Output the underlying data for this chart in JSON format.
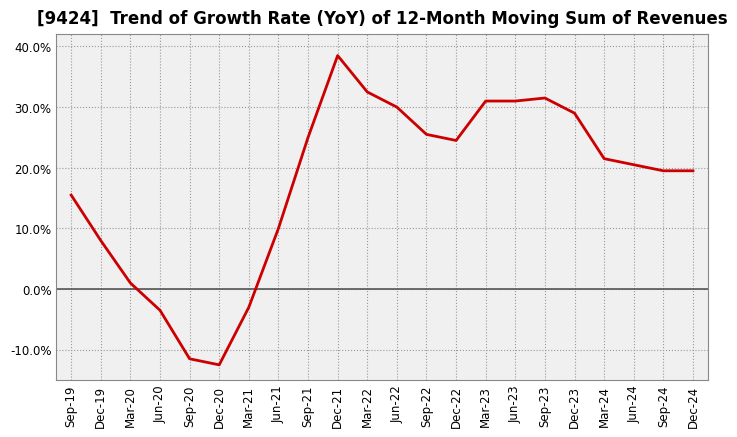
{
  "title": "[9424]  Trend of Growth Rate (YoY) of 12-Month Moving Sum of Revenues",
  "x_labels": [
    "Sep-19",
    "Dec-19",
    "Mar-20",
    "Jun-20",
    "Sep-20",
    "Dec-20",
    "Mar-21",
    "Jun-21",
    "Sep-21",
    "Dec-21",
    "Mar-22",
    "Jun-22",
    "Sep-22",
    "Dec-22",
    "Mar-23",
    "Jun-23",
    "Sep-23",
    "Dec-23",
    "Mar-24",
    "Jun-24",
    "Sep-24",
    "Dec-24"
  ],
  "y_values": [
    15.5,
    8.0,
    1.0,
    -3.5,
    -11.5,
    -12.5,
    -3.0,
    10.0,
    25.0,
    38.5,
    32.5,
    30.0,
    25.5,
    24.5,
    31.0,
    31.0,
    31.5,
    29.0,
    21.5,
    20.5,
    19.5,
    19.5
  ],
  "line_color": "#cc0000",
  "line_width": 2.0,
  "bg_color": "#ffffff",
  "plot_bg_color": "#f0f0f0",
  "grid_color": "#999999",
  "zero_line_color": "#555555",
  "border_color": "#888888",
  "ylim": [
    -15,
    42
  ],
  "yticks": [
    -10.0,
    0.0,
    10.0,
    20.0,
    30.0,
    40.0
  ],
  "ytick_labels": [
    "-10.0%",
    "0.0%",
    "10.0%",
    "20.0%",
    "30.0%",
    "40.0%"
  ],
  "title_fontsize": 12,
  "tick_fontsize": 8.5
}
